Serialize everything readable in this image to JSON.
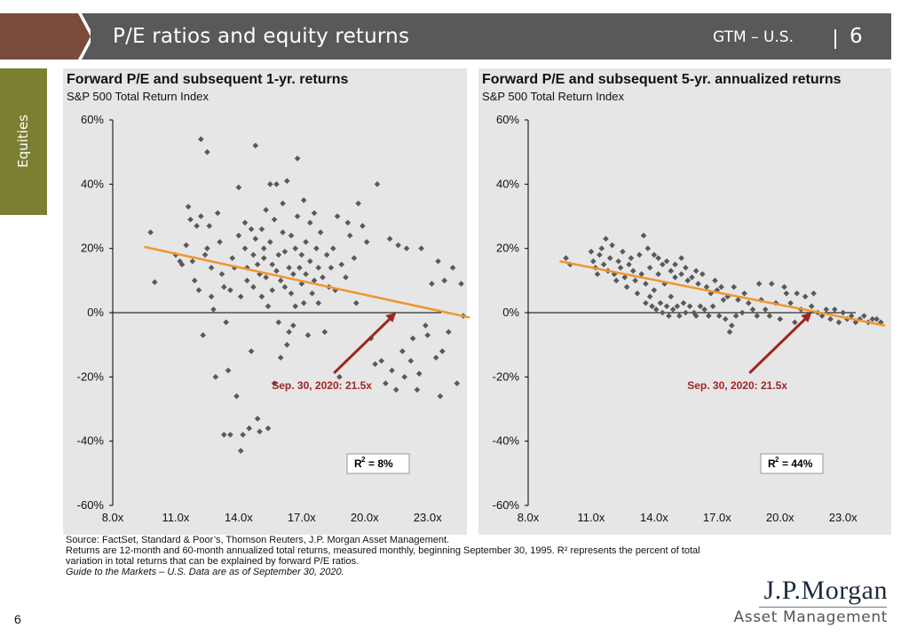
{
  "header": {
    "title": "P/E ratios and equity returns",
    "right_label": "GTM – U.S.",
    "separator": "|",
    "page": "6"
  },
  "side_tab": {
    "label": "Equities"
  },
  "colors": {
    "header_bg": "#58595b",
    "arrow": "#7a4b3a",
    "tab": "#7b7f31",
    "point": "#595959",
    "trend": "#f0962f",
    "annotation": "#a02424"
  },
  "chart_data": [
    {
      "type": "scatter",
      "title": "Forward P/E and subsequent 1-yr. returns",
      "subtitle": "S&P 500 Total Return Index",
      "xlim": [
        8,
        25
      ],
      "ylim": [
        -60,
        60
      ],
      "x_ticks": [
        "8.0x",
        "11.0x",
        "14.0x",
        "17.0x",
        "20.0x",
        "23.0x"
      ],
      "y_ticks": [
        "60%",
        "40%",
        "20%",
        "0%",
        "-20%",
        "-40%",
        "-60%"
      ],
      "trendline": {
        "x": [
          9.5,
          25
        ],
        "y": [
          20.5,
          -1.5
        ]
      },
      "annotation": {
        "text": "Sep. 30, 2020: 21.5x",
        "x": 21.5,
        "y": 0
      },
      "r2": {
        "label": "R",
        "sup": "2",
        "value": "=   8%"
      },
      "points": [
        [
          9.8,
          25
        ],
        [
          10,
          9.5
        ],
        [
          11.0,
          18
        ],
        [
          11.2,
          16
        ],
        [
          11.3,
          15
        ],
        [
          11.5,
          21
        ],
        [
          11.6,
          33
        ],
        [
          11.7,
          29
        ],
        [
          11.8,
          16
        ],
        [
          11.9,
          10
        ],
        [
          12.0,
          27
        ],
        [
          12.1,
          7
        ],
        [
          12.2,
          30
        ],
        [
          12.3,
          -7
        ],
        [
          12.2,
          54
        ],
        [
          12.5,
          50
        ],
        [
          12.4,
          18
        ],
        [
          12.5,
          20
        ],
        [
          12.6,
          27
        ],
        [
          12.7,
          14
        ],
        [
          12.7,
          5
        ],
        [
          12.8,
          1
        ],
        [
          12.9,
          -20
        ],
        [
          13.0,
          31
        ],
        [
          13.1,
          22
        ],
        [
          13.2,
          12
        ],
        [
          13.3,
          8
        ],
        [
          13.3,
          -38
        ],
        [
          13.4,
          -3
        ],
        [
          13.5,
          -18
        ],
        [
          13.6,
          7
        ],
        [
          13.6,
          -38
        ],
        [
          13.7,
          17
        ],
        [
          13.8,
          14
        ],
        [
          13.9,
          -26
        ],
        [
          14.0,
          39
        ],
        [
          14.0,
          24
        ],
        [
          14.1,
          5
        ],
        [
          14.1,
          -43
        ],
        [
          14.2,
          -38
        ],
        [
          14.3,
          28
        ],
        [
          14.3,
          20
        ],
        [
          14.4,
          14
        ],
        [
          14.4,
          10
        ],
        [
          14.5,
          -36
        ],
        [
          14.6,
          26
        ],
        [
          14.6,
          -12
        ],
        [
          14.7,
          18
        ],
        [
          14.7,
          8
        ],
        [
          14.8,
          52
        ],
        [
          14.8,
          23
        ],
        [
          14.9,
          15
        ],
        [
          14.9,
          -33
        ],
        [
          15.0,
          -37
        ],
        [
          15.0,
          12
        ],
        [
          15.1,
          26
        ],
        [
          15.1,
          5
        ],
        [
          15.2,
          17
        ],
        [
          15.2,
          20
        ],
        [
          15.3,
          32
        ],
        [
          15.3,
          11
        ],
        [
          15.4,
          2
        ],
        [
          15.4,
          -36
        ],
        [
          15.5,
          40
        ],
        [
          15.5,
          22
        ],
        [
          15.6,
          15
        ],
        [
          15.6,
          7
        ],
        [
          15.7,
          -22
        ],
        [
          15.7,
          29
        ],
        [
          15.8,
          13
        ],
        [
          15.8,
          40
        ],
        [
          15.9,
          18
        ],
        [
          15.9,
          -3
        ],
        [
          16.0,
          10
        ],
        [
          16.0,
          -14
        ],
        [
          16.1,
          25
        ],
        [
          16.1,
          34
        ],
        [
          16.2,
          8
        ],
        [
          16.2,
          19
        ],
        [
          16.3,
          41
        ],
        [
          16.3,
          -10
        ],
        [
          16.4,
          14
        ],
        [
          16.4,
          -6
        ],
        [
          16.5,
          24
        ],
        [
          16.5,
          6
        ],
        [
          16.6,
          12
        ],
        [
          16.6,
          -4
        ],
        [
          16.7,
          2
        ],
        [
          16.7,
          20
        ],
        [
          16.8,
          48
        ],
        [
          16.8,
          30
        ],
        [
          16.9,
          14
        ],
        [
          17.0,
          9
        ],
        [
          17.0,
          18
        ],
        [
          17.1,
          35
        ],
        [
          17.1,
          3
        ],
        [
          17.2,
          22
        ],
        [
          17.2,
          12
        ],
        [
          17.3,
          -7
        ],
        [
          17.4,
          28
        ],
        [
          17.4,
          16
        ],
        [
          17.5,
          6
        ],
        [
          17.6,
          31
        ],
        [
          17.6,
          10
        ],
        [
          17.7,
          20
        ],
        [
          17.8,
          14
        ],
        [
          17.8,
          3
        ],
        [
          17.9,
          25
        ],
        [
          18.0,
          11
        ],
        [
          18.1,
          -6
        ],
        [
          18.2,
          18
        ],
        [
          18.3,
          8
        ],
        [
          18.4,
          14
        ],
        [
          18.5,
          20
        ],
        [
          18.6,
          7
        ],
        [
          18.7,
          30
        ],
        [
          18.8,
          -20
        ],
        [
          18.9,
          15
        ],
        [
          19.1,
          11
        ],
        [
          19.2,
          28
        ],
        [
          19.3,
          24
        ],
        [
          19.5,
          17
        ],
        [
          19.6,
          3
        ],
        [
          19.7,
          34
        ],
        [
          19.9,
          27
        ],
        [
          20.1,
          22
        ],
        [
          20.3,
          -8
        ],
        [
          20.5,
          -16
        ],
        [
          20.6,
          40
        ],
        [
          20.8,
          -15
        ],
        [
          21.0,
          -22
        ],
        [
          21.2,
          23
        ],
        [
          21.3,
          -18
        ],
        [
          21.5,
          -24
        ],
        [
          21.6,
          21
        ],
        [
          21.8,
          -12
        ],
        [
          21.9,
          -20
        ],
        [
          22.0,
          20
        ],
        [
          22.2,
          -15
        ],
        [
          22.3,
          -8
        ],
        [
          22.5,
          -24
        ],
        [
          22.6,
          -19
        ],
        [
          22.7,
          20
        ],
        [
          22.9,
          -4
        ],
        [
          23.0,
          -7
        ],
        [
          23.2,
          9
        ],
        [
          23.4,
          -14
        ],
        [
          23.5,
          16
        ],
        [
          23.6,
          -26
        ],
        [
          23.7,
          -12
        ],
        [
          23.8,
          10
        ],
        [
          24.0,
          -6
        ],
        [
          24.2,
          14
        ],
        [
          24.4,
          -22
        ],
        [
          24.6,
          9
        ],
        [
          24.7,
          -1
        ]
      ]
    },
    {
      "type": "scatter",
      "title": "Forward P/E and subsequent 5-yr. annualized returns",
      "subtitle": "S&P 500 Total Return Index",
      "xlim": [
        8,
        25
      ],
      "ylim": [
        -60,
        60
      ],
      "x_ticks": [
        "8.0x",
        "11.0x",
        "14.0x",
        "17.0x",
        "20.0x",
        "23.0x"
      ],
      "y_ticks": [
        "60%",
        "40%",
        "20%",
        "0%",
        "-20%",
        "-40%",
        "-60%"
      ],
      "trendline": {
        "x": [
          9.5,
          25
        ],
        "y": [
          16,
          -4
        ]
      },
      "annotation": {
        "text": "Sep. 30, 2020: 21.5x",
        "x": 21.5,
        "y": 0
      },
      "r2": {
        "label": "R",
        "sup": "2",
        "value": "=   44%"
      },
      "points": [
        [
          9.8,
          17
        ],
        [
          10.0,
          15
        ],
        [
          11.0,
          19
        ],
        [
          11.1,
          16
        ],
        [
          11.2,
          14
        ],
        [
          11.3,
          12
        ],
        [
          11.4,
          18
        ],
        [
          11.5,
          20
        ],
        [
          11.6,
          15
        ],
        [
          11.7,
          23
        ],
        [
          11.8,
          13
        ],
        [
          11.9,
          17
        ],
        [
          12.0,
          21
        ],
        [
          12.1,
          12
        ],
        [
          12.2,
          10
        ],
        [
          12.3,
          16
        ],
        [
          12.4,
          14
        ],
        [
          12.5,
          19
        ],
        [
          12.6,
          11
        ],
        [
          12.7,
          8
        ],
        [
          12.8,
          15
        ],
        [
          12.9,
          17
        ],
        [
          13.0,
          13
        ],
        [
          13.1,
          10
        ],
        [
          13.2,
          6
        ],
        [
          13.3,
          18
        ],
        [
          13.4,
          12
        ],
        [
          13.5,
          24
        ],
        [
          13.6,
          9
        ],
        [
          13.6,
          3
        ],
        [
          13.7,
          20
        ],
        [
          13.8,
          5
        ],
        [
          13.8,
          14
        ],
        [
          13.9,
          2
        ],
        [
          14.0,
          18
        ],
        [
          14.0,
          7
        ],
        [
          14.1,
          1
        ],
        [
          14.2,
          12
        ],
        [
          14.2,
          17
        ],
        [
          14.3,
          3
        ],
        [
          14.4,
          0
        ],
        [
          14.4,
          15
        ],
        [
          14.5,
          9
        ],
        [
          14.6,
          2
        ],
        [
          14.6,
          16
        ],
        [
          14.7,
          -1
        ],
        [
          14.8,
          13
        ],
        [
          14.8,
          5
        ],
        [
          14.9,
          1
        ],
        [
          15.0,
          15
        ],
        [
          15.0,
          11
        ],
        [
          15.1,
          2
        ],
        [
          15.2,
          -1
        ],
        [
          15.3,
          12
        ],
        [
          15.3,
          17
        ],
        [
          15.4,
          3
        ],
        [
          15.5,
          0
        ],
        [
          15.5,
          14
        ],
        [
          15.6,
          10
        ],
        [
          15.7,
          2
        ],
        [
          15.8,
          11
        ],
        [
          15.9,
          0
        ],
        [
          16.0,
          13
        ],
        [
          16.0,
          -1
        ],
        [
          16.1,
          9
        ],
        [
          16.2,
          2
        ],
        [
          16.3,
          12
        ],
        [
          16.4,
          1
        ],
        [
          16.5,
          8
        ],
        [
          16.6,
          -1
        ],
        [
          16.7,
          6
        ],
        [
          16.8,
          2
        ],
        [
          16.9,
          10
        ],
        [
          17.0,
          7
        ],
        [
          17.1,
          -1
        ],
        [
          17.2,
          8
        ],
        [
          17.3,
          4
        ],
        [
          17.4,
          -2
        ],
        [
          17.5,
          5
        ],
        [
          17.6,
          -6
        ],
        [
          17.7,
          -4
        ],
        [
          17.8,
          8
        ],
        [
          17.9,
          -1
        ],
        [
          18.0,
          4
        ],
        [
          18.2,
          0
        ],
        [
          18.3,
          6
        ],
        [
          18.5,
          3
        ],
        [
          18.7,
          1
        ],
        [
          18.9,
          -1
        ],
        [
          19.0,
          9
        ],
        [
          19.1,
          4
        ],
        [
          19.3,
          1
        ],
        [
          19.5,
          -1
        ],
        [
          19.6,
          9
        ],
        [
          19.8,
          3
        ],
        [
          20.0,
          -2
        ],
        [
          20.2,
          8
        ],
        [
          20.3,
          6
        ],
        [
          20.5,
          3
        ],
        [
          20.7,
          -3
        ],
        [
          20.8,
          6
        ],
        [
          21.0,
          1
        ],
        [
          21.2,
          5
        ],
        [
          21.3,
          -1
        ],
        [
          21.5,
          2
        ],
        [
          21.6,
          6
        ],
        [
          21.8,
          0
        ],
        [
          22.0,
          -1
        ],
        [
          22.2,
          1
        ],
        [
          22.4,
          -2
        ],
        [
          22.6,
          1
        ],
        [
          22.8,
          -3
        ],
        [
          23.0,
          0
        ],
        [
          23.2,
          -2
        ],
        [
          23.4,
          -1
        ],
        [
          23.6,
          -3
        ],
        [
          23.8,
          -2
        ],
        [
          24.0,
          -1
        ],
        [
          24.2,
          -3
        ],
        [
          24.4,
          -2
        ],
        [
          24.6,
          -2
        ],
        [
          24.8,
          -3
        ]
      ]
    }
  ],
  "footnotes": {
    "source": "Source: FactSet, Standard & Poor’s, Thomson Reuters, J.P. Morgan Asset Management.",
    "line2": "Returns are 12-month and 60-month annualized total returns, measured monthly, beginning September 30, 1995. R² represents the percent of total",
    "line3": "variation in total returns that can be explained by forward P/E ratios.",
    "line4": "Guide to the Markets – U.S. Data are as of September 30, 2020."
  },
  "page_number": "6",
  "logo": {
    "top": "J.P.Morgan",
    "bottom": "Asset Management"
  }
}
